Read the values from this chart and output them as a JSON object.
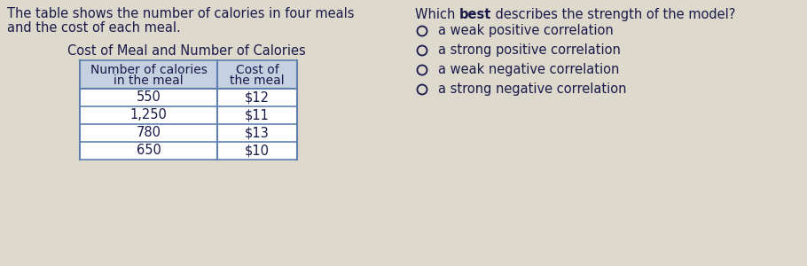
{
  "background_color": "#ddd9cc",
  "left_text_line1": "The table shows the number of calories in four meals",
  "left_text_line2": "and the cost of each meal.",
  "table_title": "Cost of Meal and Number of Calories",
  "col1_header_line1": "Number of calories",
  "col1_header_line2": "in the meal",
  "col2_header_line1": "Cost of",
  "col2_header_line2": "the meal",
  "table_data": [
    [
      "550",
      "$12"
    ],
    [
      "1,250",
      "$11"
    ],
    [
      "780",
      "$13"
    ],
    [
      "650",
      "$10"
    ]
  ],
  "question_prefix": "Which ",
  "question_bold": "best",
  "question_suffix": " describes the strength of the model?",
  "options": [
    "a weak positive correlation",
    "a strong positive correlation",
    "a weak negative correlation",
    "a strong negative correlation"
  ],
  "text_color": "#1a1a4a",
  "table_border_color": "#6080b0",
  "table_header_bg": "#c5d0e0",
  "fs": 10.5
}
